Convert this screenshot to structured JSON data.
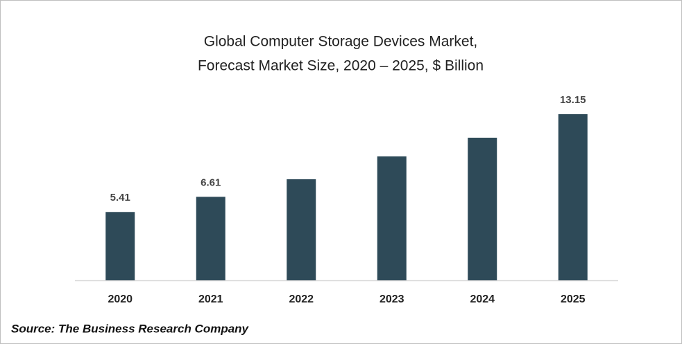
{
  "chart_data": {
    "type": "bar",
    "title": [
      "Global Computer Storage Devices Market,",
      "Forecast Market Size, 2020 – 2025, $ Billion"
    ],
    "categories": [
      "2020",
      "2021",
      "2022",
      "2023",
      "2024",
      "2025"
    ],
    "values": [
      5.41,
      6.61,
      8.0,
      9.81,
      11.29,
      13.15
    ],
    "value_labels": [
      "5.41",
      "6.61",
      null,
      null,
      null,
      "13.15"
    ],
    "color": "#2e4a58",
    "source": "Source: The Business Research Company"
  }
}
